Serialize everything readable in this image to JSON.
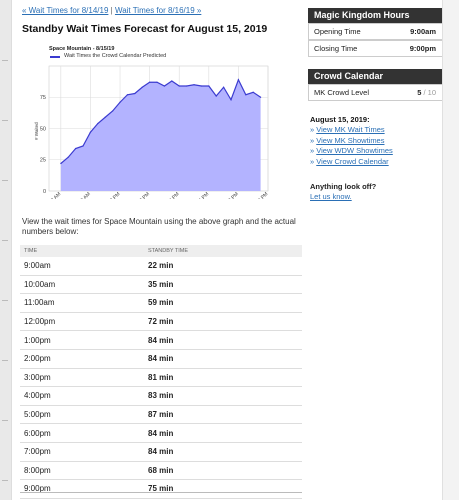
{
  "nav": {
    "prev_link": "« Wait Times for 8/14/19",
    "separator": " | ",
    "next_link": "Wait Times for 8/16/19 »"
  },
  "title": "Standby Wait Times Forecast for August 15, 2019",
  "chart": {
    "legend_title": "Space Mountain - 8/15/19",
    "legend_label": "Wait Times the Crowd Calendar Predicted",
    "ylabel": "# Waited"
  },
  "chart_data": {
    "type": "area",
    "title": "Space Mountain - 8/15/19",
    "ylabel": "# Waited",
    "ylim": [
      0,
      100
    ],
    "yticks": [
      0,
      25,
      50,
      75
    ],
    "x_tick_labels": [
      "8 AM",
      "10 AM",
      "12 PM",
      "2 PM",
      "4 PM",
      "6 PM",
      "8 PM",
      "10 PM"
    ],
    "x_tick_hours": [
      8,
      10,
      12,
      14,
      16,
      18,
      20,
      22
    ],
    "xlim": [
      7.2,
      22
    ],
    "grid": true,
    "series": [
      {
        "name": "Wait Times the Crowd Calendar Predicted",
        "color": "#3b3bd0",
        "fill": "#b3b3ff",
        "hours": [
          8.0,
          8.5,
          9.0,
          9.5,
          10.0,
          10.5,
          11.0,
          11.5,
          12.0,
          12.5,
          13.0,
          13.5,
          14.0,
          14.5,
          15.0,
          15.5,
          16.0,
          16.5,
          17.0,
          17.5,
          18.0,
          18.5,
          19.0,
          19.5,
          20.0,
          20.5,
          21.0,
          21.5
        ],
        "values": [
          22,
          27,
          34,
          36,
          47,
          54,
          59,
          64,
          71,
          77,
          78,
          83,
          87,
          87,
          84,
          88,
          84,
          84,
          85,
          84,
          84,
          76,
          83,
          73,
          89,
          77,
          79,
          75
        ]
      }
    ]
  },
  "description": "View the wait times for Space Mountain using the above graph and the actual numbers below:",
  "table": {
    "headers": [
      "TIME",
      "STANDBY TIME"
    ],
    "rows": [
      [
        "9:00am",
        "22 min"
      ],
      [
        "10:00am",
        "35 min"
      ],
      [
        "11:00am",
        "59 min"
      ],
      [
        "12:00pm",
        "72 min"
      ],
      [
        "1:00pm",
        "84 min"
      ],
      [
        "2:00pm",
        "84 min"
      ],
      [
        "3:00pm",
        "81 min"
      ],
      [
        "4:00pm",
        "83 min"
      ],
      [
        "5:00pm",
        "87 min"
      ],
      [
        "6:00pm",
        "84 min"
      ],
      [
        "7:00pm",
        "84 min"
      ],
      [
        "8:00pm",
        "68 min"
      ],
      [
        "9:00pm",
        "75 min"
      ]
    ]
  },
  "sidebar": {
    "hours_title": "Magic Kingdom Hours",
    "opening_label": "Opening Time",
    "opening_value": "9:00am",
    "closing_label": "Closing Time",
    "closing_value": "9:00pm",
    "crowd_title": "Crowd Calendar",
    "crowd_label": "MK Crowd Level",
    "crowd_value": "5",
    "crowd_max": " / 10",
    "date_heading": "August 15, 2019:",
    "links": [
      "View MK Wait Times",
      "View MK Showtimes",
      "View WDW Showtimes",
      "View Crowd Calendar"
    ],
    "link_prefix": "» ",
    "feedback_heading": "Anything look off?",
    "feedback_link": "Let us know."
  },
  "colors": {
    "accent_link": "#2a6fb5",
    "chart_line": "#3b3bd0",
    "chart_fill": "#b3b3ff",
    "card_header": "#333333"
  }
}
